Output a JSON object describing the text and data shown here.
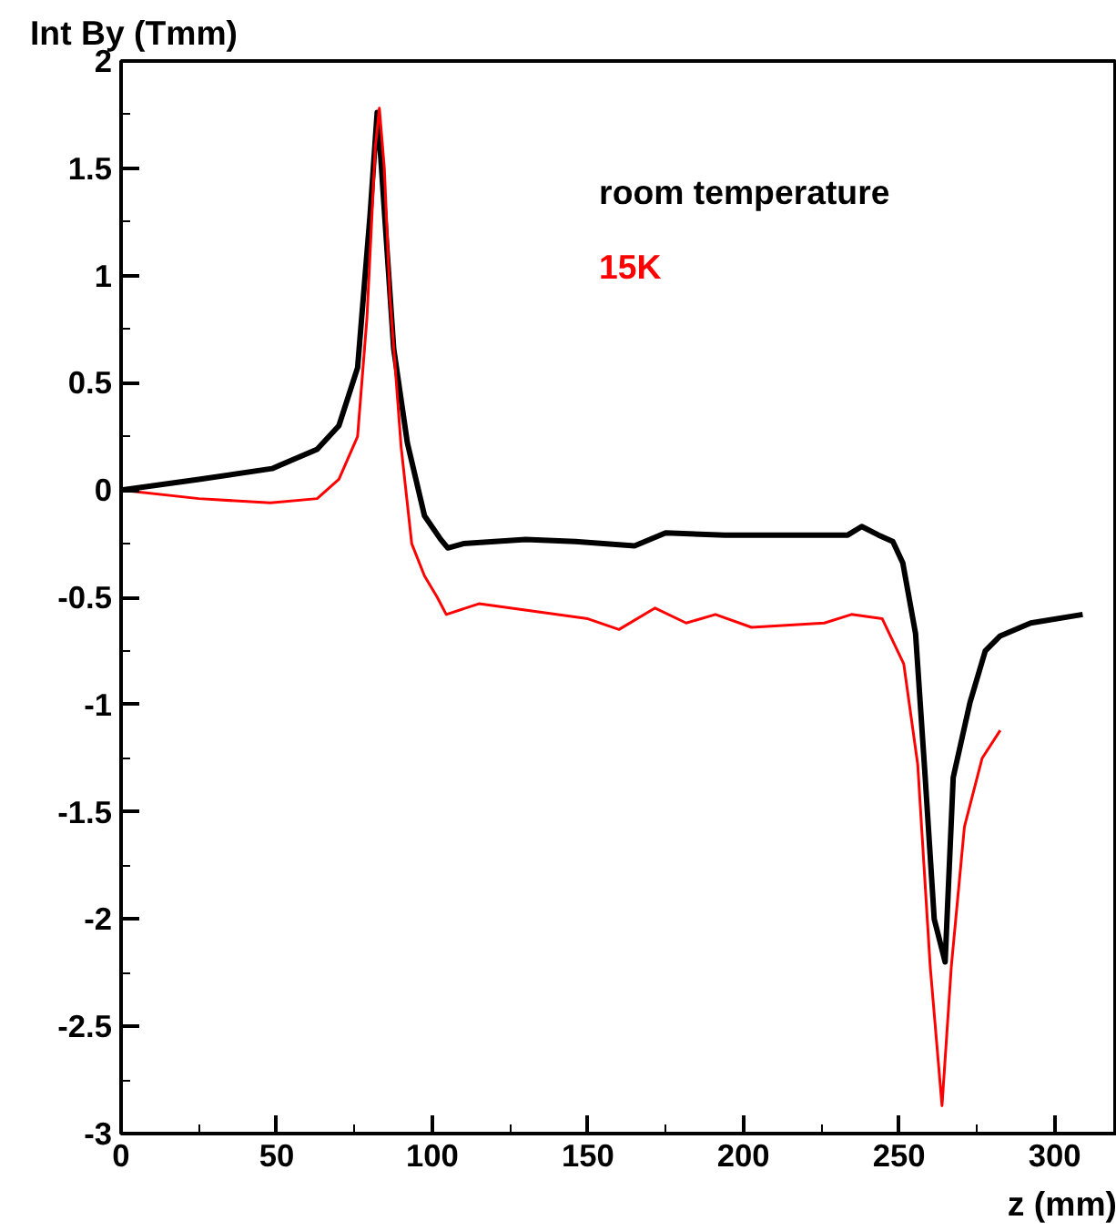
{
  "chart_data": {
    "type": "line",
    "xlabel": "z (mm)",
    "ylabel": "Int By (Tmm)",
    "xlim": [
      0,
      320
    ],
    "ylim": [
      -3,
      2
    ],
    "xticks": [
      0,
      50,
      100,
      150,
      200,
      250,
      300
    ],
    "yticks": [
      -3,
      -2.5,
      -2,
      -1.5,
      -1,
      -0.5,
      0,
      0.5,
      1,
      1.5,
      2
    ],
    "grid": false,
    "legend": "top right",
    "marker": "none",
    "line_style": "solid",
    "series": [
      {
        "name": "room temperature",
        "color": "#000000",
        "x": [
          0,
          25,
          48.5,
          63,
          70,
          76,
          80,
          82.3,
          83.5,
          87.6,
          92,
          97.5,
          102.7,
          105,
          110,
          130,
          146,
          165,
          175,
          194,
          214,
          233.5,
          238,
          243.4,
          248,
          251.2,
          255.3,
          258.4,
          261.3,
          264.8,
          267.4,
          272.8,
          277.7,
          282.5,
          292.3,
          309
        ],
        "values": [
          0,
          0.05,
          0.1,
          0.19,
          0.3,
          0.57,
          1.28,
          1.76,
          1.54,
          0.66,
          0.22,
          -0.12,
          -0.23,
          -0.27,
          -0.25,
          -0.23,
          -0.24,
          -0.26,
          -0.2,
          -0.21,
          -0.21,
          -0.21,
          -0.17,
          -0.21,
          -0.24,
          -0.34,
          -0.67,
          -1.34,
          -2.0,
          -2.2,
          -1.34,
          -0.99,
          -0.75,
          -0.68,
          -0.62,
          -0.58
        ]
      },
      {
        "name": "15K",
        "color": "#ff0000",
        "x": [
          0,
          25,
          48,
          63,
          70,
          76,
          79,
          81.7,
          83,
          84.6,
          86.4,
          90,
          93.4,
          97.5,
          101.6,
          104.5,
          115,
          150,
          160,
          171.6,
          181.6,
          191,
          202.6,
          226,
          234.7,
          244.6,
          251.5,
          256,
          260,
          263.8,
          266.8,
          271,
          276.7,
          282.5
        ],
        "values": [
          0,
          -0.04,
          -0.06,
          -0.04,
          0.05,
          0.25,
          0.8,
          1.6,
          1.78,
          1.5,
          0.9,
          0.2,
          -0.25,
          -0.4,
          -0.5,
          -0.58,
          -0.53,
          -0.6,
          -0.65,
          -0.55,
          -0.62,
          -0.58,
          -0.64,
          -0.62,
          -0.58,
          -0.6,
          -0.81,
          -1.28,
          -2.22,
          -2.87,
          -2.22,
          -1.57,
          -1.25,
          -1.12
        ]
      }
    ]
  }
}
